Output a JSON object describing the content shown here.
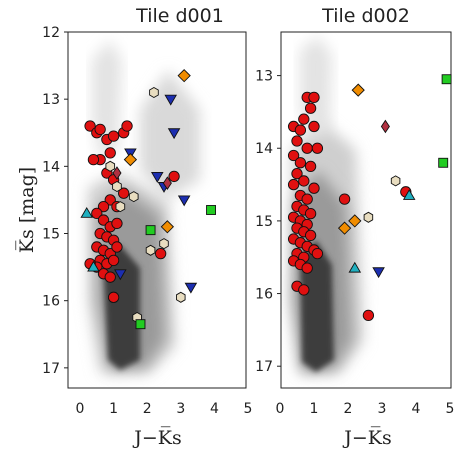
{
  "figure": {
    "ylabel": "K̅s [mag]",
    "xlabel": "J−K̅s"
  },
  "chart_data": [
    {
      "type": "scatter",
      "title": "Tile d001",
      "xlabel": "J−K̅s",
      "ylabel": "K̅s [mag]",
      "xlim": [
        0,
        5
      ],
      "ylim": [
        17.3,
        12
      ],
      "y_inverted": true,
      "xticks": [
        "0",
        "1",
        "2",
        "3",
        "4",
        "5"
      ],
      "yticks": [
        "12",
        "13",
        "14",
        "15",
        "16",
        "17"
      ],
      "ytick_values": [
        12,
        13,
        14,
        15,
        16,
        17
      ],
      "grid": false,
      "background": "grey density of field stars",
      "series": [
        {
          "marker": "circle",
          "color": "#e01010",
          "points": [
            [
              0.3,
              13.4
            ],
            [
              0.5,
              13.5
            ],
            [
              0.6,
              13.45
            ],
            [
              0.8,
              13.6
            ],
            [
              0.9,
              13.8
            ],
            [
              0.6,
              13.9
            ],
            [
              0.4,
              13.9
            ],
            [
              1.0,
              13.55
            ],
            [
              1.3,
              13.5
            ],
            [
              1.4,
              13.4
            ],
            [
              0.8,
              14.1
            ],
            [
              1.0,
              14.2
            ],
            [
              1.3,
              14.4
            ],
            [
              0.9,
              14.5
            ],
            [
              0.7,
              14.6
            ],
            [
              1.1,
              14.6
            ],
            [
              2.8,
              14.15
            ],
            [
              0.5,
              14.7
            ],
            [
              0.7,
              14.8
            ],
            [
              0.9,
              14.9
            ],
            [
              1.1,
              14.85
            ],
            [
              0.6,
              15.0
            ],
            [
              0.8,
              15.05
            ],
            [
              1.0,
              15.1
            ],
            [
              0.5,
              15.2
            ],
            [
              0.7,
              15.25
            ],
            [
              0.9,
              15.3
            ],
            [
              1.1,
              15.2
            ],
            [
              0.6,
              15.4
            ],
            [
              0.8,
              15.45
            ],
            [
              1.0,
              15.4
            ],
            [
              0.5,
              15.5
            ],
            [
              0.7,
              15.6
            ],
            [
              0.9,
              15.65
            ],
            [
              0.3,
              15.45
            ],
            [
              1.0,
              15.95
            ],
            [
              2.4,
              15.3
            ]
          ]
        },
        {
          "marker": "triangle-down",
          "color": "#1c2eb0",
          "points": [
            [
              2.7,
              13.0
            ],
            [
              2.8,
              13.5
            ],
            [
              1.5,
              13.8
            ],
            [
              2.3,
              14.15
            ],
            [
              2.5,
              14.3
            ],
            [
              3.1,
              14.5
            ],
            [
              1.2,
              15.6
            ],
            [
              3.3,
              15.8
            ]
          ]
        },
        {
          "marker": "hexagon",
          "color": "#e8ddc0",
          "points": [
            [
              2.2,
              12.9
            ],
            [
              0.9,
              14.0
            ],
            [
              1.1,
              14.3
            ],
            [
              1.6,
              14.45
            ],
            [
              1.2,
              14.6
            ],
            [
              2.5,
              15.15
            ],
            [
              2.1,
              15.25
            ],
            [
              3.0,
              15.95
            ],
            [
              1.7,
              16.25
            ]
          ]
        },
        {
          "marker": "diamond",
          "color": "#f08c00",
          "points": [
            [
              3.1,
              12.65
            ],
            [
              1.5,
              13.9
            ],
            [
              2.6,
              14.9
            ]
          ]
        },
        {
          "marker": "diamond",
          "color": "#b03040",
          "points": [
            [
              1.1,
              14.1
            ],
            [
              2.6,
              14.25
            ]
          ]
        },
        {
          "marker": "square",
          "color": "#22cc22",
          "points": [
            [
              2.1,
              14.95
            ],
            [
              3.9,
              14.65
            ],
            [
              1.8,
              16.35
            ]
          ]
        },
        {
          "marker": "triangle-up",
          "color": "#20b0c0",
          "points": [
            [
              0.2,
              14.7
            ],
            [
              0.4,
              15.5
            ]
          ]
        }
      ]
    },
    {
      "type": "scatter",
      "title": "Tile d002",
      "xlabel": "J−K̅s",
      "ylabel": "",
      "xlim": [
        0,
        5
      ],
      "ylim": [
        17.3,
        12.4
      ],
      "y_inverted": true,
      "xticks": [
        "0",
        "1",
        "2",
        "3",
        "4",
        "5"
      ],
      "yticks": [
        "13",
        "14",
        "15",
        "16",
        "17"
      ],
      "ytick_values": [
        13,
        14,
        15,
        16,
        17
      ],
      "grid": false,
      "background": "grey density of field stars",
      "series": [
        {
          "marker": "circle",
          "color": "#e01010",
          "points": [
            [
              0.8,
              13.3
            ],
            [
              1.0,
              13.3
            ],
            [
              0.9,
              13.45
            ],
            [
              0.7,
              13.6
            ],
            [
              1.0,
              13.7
            ],
            [
              0.4,
              13.7
            ],
            [
              0.6,
              13.75
            ],
            [
              0.5,
              13.9
            ],
            [
              0.8,
              14.0
            ],
            [
              1.1,
              14.0
            ],
            [
              0.4,
              14.1
            ],
            [
              0.6,
              14.2
            ],
            [
              0.9,
              14.25
            ],
            [
              0.5,
              14.35
            ],
            [
              0.7,
              14.45
            ],
            [
              0.4,
              14.5
            ],
            [
              1.0,
              14.55
            ],
            [
              0.6,
              14.65
            ],
            [
              0.8,
              14.7
            ],
            [
              0.5,
              14.8
            ],
            [
              0.7,
              14.85
            ],
            [
              0.9,
              14.9
            ],
            [
              0.4,
              14.95
            ],
            [
              0.6,
              15.0
            ],
            [
              0.8,
              15.05
            ],
            [
              0.5,
              15.1
            ],
            [
              0.7,
              15.15
            ],
            [
              0.9,
              15.2
            ],
            [
              0.4,
              15.25
            ],
            [
              0.6,
              15.3
            ],
            [
              0.8,
              15.35
            ],
            [
              1.0,
              15.4
            ],
            [
              0.5,
              15.45
            ],
            [
              0.7,
              15.5
            ],
            [
              0.4,
              15.55
            ],
            [
              0.6,
              15.6
            ],
            [
              0.8,
              15.65
            ],
            [
              1.1,
              15.45
            ],
            [
              0.5,
              15.9
            ],
            [
              0.7,
              15.95
            ],
            [
              1.9,
              14.7
            ],
            [
              2.6,
              16.3
            ],
            [
              3.7,
              14.6
            ]
          ]
        },
        {
          "marker": "triangle-down",
          "color": "#1c2eb0",
          "points": [
            [
              2.9,
              15.7
            ]
          ]
        },
        {
          "marker": "hexagon",
          "color": "#e8ddc0",
          "points": [
            [
              3.4,
              14.45
            ],
            [
              2.6,
              14.95
            ]
          ]
        },
        {
          "marker": "diamond",
          "color": "#f08c00",
          "points": [
            [
              2.3,
              13.2
            ],
            [
              2.2,
              15.0
            ],
            [
              1.9,
              15.1
            ]
          ]
        },
        {
          "marker": "diamond",
          "color": "#b03040",
          "points": [
            [
              3.1,
              13.7
            ]
          ]
        },
        {
          "marker": "square",
          "color": "#22cc22",
          "points": [
            [
              4.9,
              13.05
            ],
            [
              4.8,
              14.2
            ]
          ]
        },
        {
          "marker": "triangle-up",
          "color": "#20b0c0",
          "points": [
            [
              3.8,
              14.65
            ],
            [
              2.2,
              15.65
            ]
          ]
        }
      ]
    }
  ]
}
